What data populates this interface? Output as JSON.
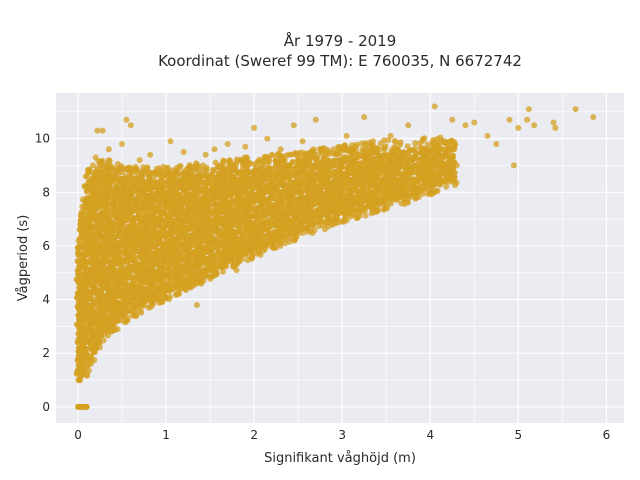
{
  "chart_data": {
    "type": "scatter",
    "title_lines": [
      "År 1979 - 2019",
      "Koordinat (Sweref 99 TM): E 760035, N 6672742"
    ],
    "xlabel": "Signifikant våghöjd (m)",
    "ylabel": "Vågperiod (s)",
    "xlim": [
      -0.25,
      6.2
    ],
    "ylim": [
      -0.6,
      11.7
    ],
    "xticks": [
      "0",
      "1",
      "2",
      "3",
      "4",
      "5",
      "6"
    ],
    "yticks": [
      "0",
      "2",
      "4",
      "6",
      "8",
      "10"
    ],
    "grid": true,
    "legend": "none",
    "colors": {
      "marker": "#D4A020",
      "plot_bg": "#EBEBF2",
      "grid": "#ffffff"
    },
    "density_envelope": {
      "x": [
        0.0,
        0.05,
        0.1,
        0.2,
        0.3,
        0.5,
        0.75,
        1.0,
        1.5,
        2.0,
        2.5,
        3.0,
        3.5,
        4.0,
        4.3
      ],
      "y_low": [
        1.2,
        1.1,
        1.5,
        2.2,
        2.8,
        3.4,
        3.9,
        4.3,
        5.1,
        5.9,
        6.6,
        7.2,
        7.7,
        8.2,
        8.6
      ],
      "y_high": [
        6.0,
        7.4,
        8.4,
        8.8,
        8.8,
        8.6,
        8.5,
        8.5,
        8.7,
        8.9,
        9.1,
        9.3,
        9.5,
        9.6,
        9.7
      ]
    },
    "zero_points": {
      "x": [
        0.0,
        0.01,
        0.02,
        0.03,
        0.04,
        0.05,
        0.06,
        0.07,
        0.08,
        0.09,
        0.1
      ],
      "y": 0
    },
    "outliers": [
      {
        "x": 0.22,
        "y": 10.3
      },
      {
        "x": 0.28,
        "y": 10.3
      },
      {
        "x": 0.55,
        "y": 10.7
      },
      {
        "x": 0.6,
        "y": 10.5
      },
      {
        "x": 0.5,
        "y": 9.8
      },
      {
        "x": 0.35,
        "y": 9.6
      },
      {
        "x": 0.82,
        "y": 9.4
      },
      {
        "x": 1.05,
        "y": 9.9
      },
      {
        "x": 1.2,
        "y": 9.5
      },
      {
        "x": 1.45,
        "y": 9.4
      },
      {
        "x": 1.7,
        "y": 9.8
      },
      {
        "x": 2.0,
        "y": 10.4
      },
      {
        "x": 2.15,
        "y": 10.0
      },
      {
        "x": 2.45,
        "y": 10.5
      },
      {
        "x": 2.7,
        "y": 10.7
      },
      {
        "x": 2.55,
        "y": 9.9
      },
      {
        "x": 3.05,
        "y": 10.1
      },
      {
        "x": 3.25,
        "y": 10.8
      },
      {
        "x": 3.35,
        "y": 9.9
      },
      {
        "x": 3.55,
        "y": 10.1
      },
      {
        "x": 3.75,
        "y": 10.5
      },
      {
        "x": 4.05,
        "y": 11.2
      },
      {
        "x": 4.25,
        "y": 10.7
      },
      {
        "x": 4.4,
        "y": 10.5
      },
      {
        "x": 4.5,
        "y": 10.6
      },
      {
        "x": 4.65,
        "y": 10.1
      },
      {
        "x": 4.75,
        "y": 9.8
      },
      {
        "x": 4.95,
        "y": 9.0
      },
      {
        "x": 4.9,
        "y": 10.7
      },
      {
        "x": 5.0,
        "y": 10.4
      },
      {
        "x": 5.12,
        "y": 11.1
      },
      {
        "x": 5.1,
        "y": 10.7
      },
      {
        "x": 5.18,
        "y": 10.5
      },
      {
        "x": 5.4,
        "y": 10.6
      },
      {
        "x": 5.42,
        "y": 10.4
      },
      {
        "x": 5.65,
        "y": 11.1
      },
      {
        "x": 5.85,
        "y": 10.8
      },
      {
        "x": 4.2,
        "y": 9.7
      },
      {
        "x": 3.95,
        "y": 9.4
      },
      {
        "x": 3.6,
        "y": 9.7
      },
      {
        "x": 2.9,
        "y": 9.6
      },
      {
        "x": 3.1,
        "y": 9.6
      },
      {
        "x": 2.3,
        "y": 9.6
      },
      {
        "x": 1.9,
        "y": 9.7
      },
      {
        "x": 1.55,
        "y": 9.6
      },
      {
        "x": 0.12,
        "y": 8.8
      },
      {
        "x": 0.2,
        "y": 9.3
      },
      {
        "x": 0.7,
        "y": 9.2
      },
      {
        "x": 1.35,
        "y": 3.8
      },
      {
        "x": 0.65,
        "y": 3.4
      },
      {
        "x": 0.45,
        "y": 2.9
      },
      {
        "x": 0.95,
        "y": 3.9
      },
      {
        "x": 1.8,
        "y": 5.1
      },
      {
        "x": 2.4,
        "y": 6.3
      },
      {
        "x": 2.95,
        "y": 7.0
      },
      {
        "x": 3.3,
        "y": 7.6
      },
      {
        "x": 3.7,
        "y": 8.3
      },
      {
        "x": 4.1,
        "y": 8.7
      },
      {
        "x": 4.3,
        "y": 9.0
      }
    ]
  }
}
